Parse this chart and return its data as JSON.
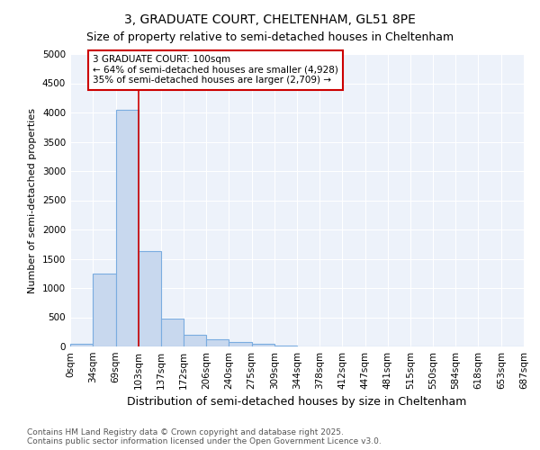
{
  "title": "3, GRADUATE COURT, CHELTENHAM, GL51 8PE",
  "subtitle": "Size of property relative to semi-detached houses in Cheltenham",
  "xlabel": "Distribution of semi-detached houses by size in Cheltenham",
  "ylabel": "Number of semi-detached properties",
  "bar_values": [
    50,
    1250,
    4050,
    1630,
    480,
    200,
    120,
    70,
    50,
    20,
    5,
    0,
    0,
    0,
    0,
    0,
    0,
    0,
    0,
    0
  ],
  "bin_edges": [
    0,
    34,
    69,
    103,
    137,
    172,
    206,
    240,
    275,
    309,
    344,
    378,
    412,
    447,
    481,
    515,
    550,
    584,
    618,
    653,
    687
  ],
  "bar_color": "#c8d8ee",
  "bar_edgecolor": "#7aace0",
  "property_line_x": 103,
  "property_line_color": "#cc0000",
  "ylim": [
    0,
    5000
  ],
  "yticks": [
    0,
    500,
    1000,
    1500,
    2000,
    2500,
    3000,
    3500,
    4000,
    4500,
    5000
  ],
  "annotation_text": "3 GRADUATE COURT: 100sqm\n← 64% of semi-detached houses are smaller (4,928)\n35% of semi-detached houses are larger (2,709) →",
  "annotation_box_color": "#cc0000",
  "background_color": "#edf2fa",
  "footer_text": "Contains HM Land Registry data © Crown copyright and database right 2025.\nContains public sector information licensed under the Open Government Licence v3.0.",
  "title_fontsize": 10,
  "subtitle_fontsize": 9,
  "xlabel_fontsize": 9,
  "ylabel_fontsize": 8,
  "tick_fontsize": 7.5,
  "annotation_fontsize": 7.5,
  "footer_fontsize": 6.5
}
